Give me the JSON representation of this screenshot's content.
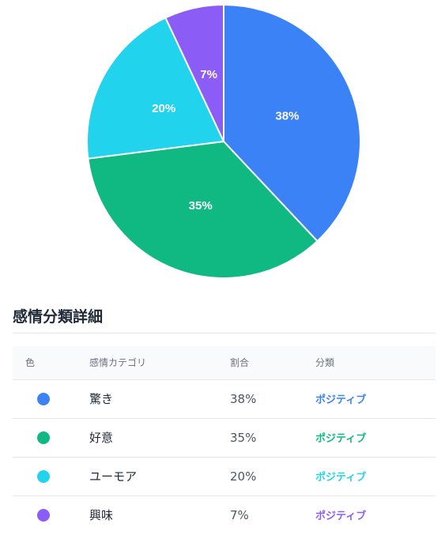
{
  "chart_data": {
    "type": "pie",
    "title": "",
    "slices": [
      {
        "label": "驚き",
        "value": 38,
        "color": "#3b82f6"
      },
      {
        "label": "好意",
        "value": 35,
        "color": "#10b981"
      },
      {
        "label": "ユーモア",
        "value": 20,
        "color": "#22d3ee"
      },
      {
        "label": "興味",
        "value": 7,
        "color": "#8b5cf6"
      }
    ],
    "value_suffix": "%"
  },
  "section": {
    "title": "感情分類詳細"
  },
  "table": {
    "headers": {
      "color": "色",
      "category": "感情カテゴリ",
      "ratio": "割合",
      "classification": "分類"
    },
    "rows": [
      {
        "name": "驚き",
        "ratio": "38%",
        "class": "ポジティブ",
        "color": "#3b82f6",
        "text_color": "#3b82f6"
      },
      {
        "name": "好意",
        "ratio": "35%",
        "class": "ポジティブ",
        "color": "#10b981",
        "text_color": "#10b981"
      },
      {
        "name": "ユーモア",
        "ratio": "20%",
        "class": "ポジティブ",
        "color": "#22d3ee",
        "text_color": "#22d3ee"
      },
      {
        "name": "興味",
        "ratio": "7%",
        "class": "ポジティブ",
        "color": "#8b5cf6",
        "text_color": "#8b5cf6"
      }
    ]
  }
}
